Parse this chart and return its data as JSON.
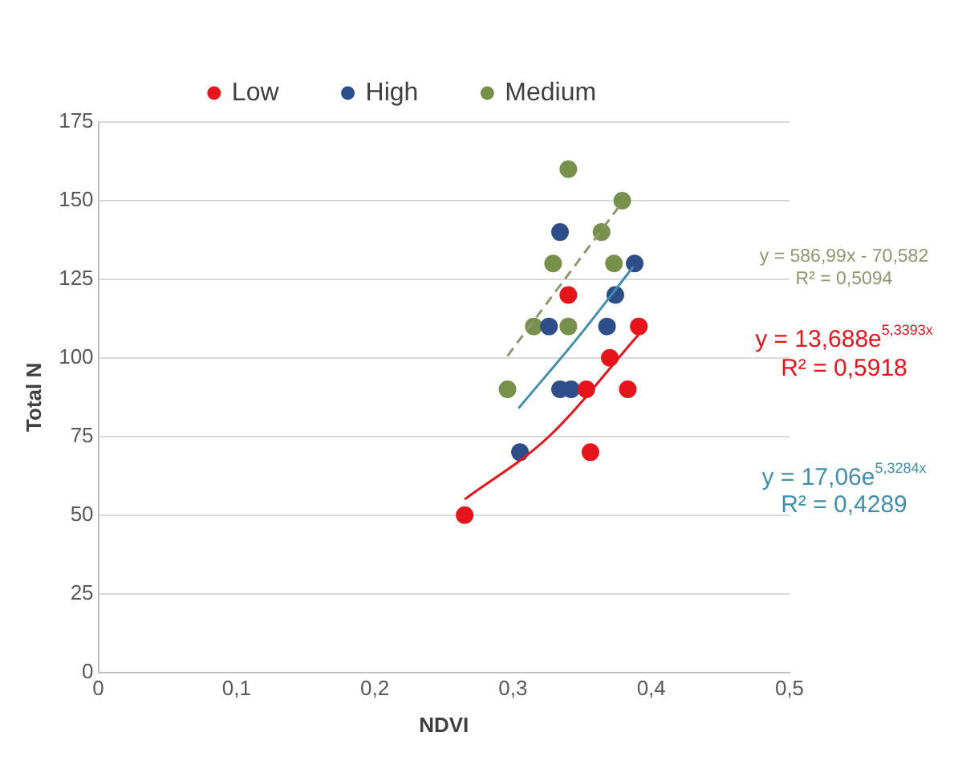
{
  "chart_data": {
    "type": "scatter",
    "xlabel": "NDVI",
    "ylabel": "Total N",
    "xlim": [
      0,
      0.5
    ],
    "xticks": [
      0,
      {
        "value": 0.1,
        "label": "0,1"
      },
      {
        "value": 0.2,
        "label": "0,2"
      },
      {
        "value": 0.3,
        "label": "0,3"
      },
      {
        "value": 0.4,
        "label": "0,4"
      },
      {
        "value": 0.5,
        "label": "0,5"
      }
    ],
    "ylim": [
      0,
      175
    ],
    "yticks": [
      0,
      25,
      50,
      75,
      100,
      125,
      150,
      175
    ],
    "grid": "y",
    "legend": "top",
    "marker": "circle",
    "series": [
      {
        "name": "Low",
        "color": "#e8141c",
        "x": [
          0.265,
          0.34,
          0.391,
          0.37,
          0.353,
          0.383,
          0.356
        ],
        "values": [
          50,
          120,
          110,
          100,
          90,
          90,
          70
        ]
      },
      {
        "name": "High",
        "color": "#2e4e8a",
        "x": [
          0.305,
          0.334,
          0.388,
          0.374,
          0.368,
          0.326,
          0.334,
          0.342
        ],
        "values": [
          70,
          140,
          130,
          120,
          110,
          110,
          90,
          90
        ]
      },
      {
        "name": "Medium",
        "color": "#77904a",
        "x": [
          0.34,
          0.379,
          0.364,
          0.329,
          0.373,
          0.315,
          0.34,
          0.296
        ],
        "values": [
          160,
          150,
          140,
          130,
          130,
          110,
          110,
          90
        ]
      },
      {
        "type": "line",
        "color": "#8a9a6b",
        "line_style": "dashed",
        "marker": "none",
        "x": [
          0.296,
          0.379
        ],
        "values": [
          100.6,
          149.5
        ]
      },
      {
        "type": "line",
        "color": "#e8141c",
        "line_style": "solid",
        "marker": "none",
        "x": [
          0.265,
          0.326,
          0.391
        ],
        "values": [
          55,
          75,
          107.5
        ]
      },
      {
        "type": "line",
        "color": "#3f8fb0",
        "line_style": "solid",
        "marker": "none",
        "x": [
          0.304,
          0.347,
          0.387
        ],
        "values": [
          84,
          106.5,
          129
        ]
      }
    ],
    "annotations": [
      "y = 586,99x - 70,582",
      "R² = 0,5094",
      "y = 13,688e$^{5,3393x}$",
      "R² = 0,5918",
      "y = 17,06e$^{5,3284x}$",
      "R² = 0,4289"
    ]
  }
}
